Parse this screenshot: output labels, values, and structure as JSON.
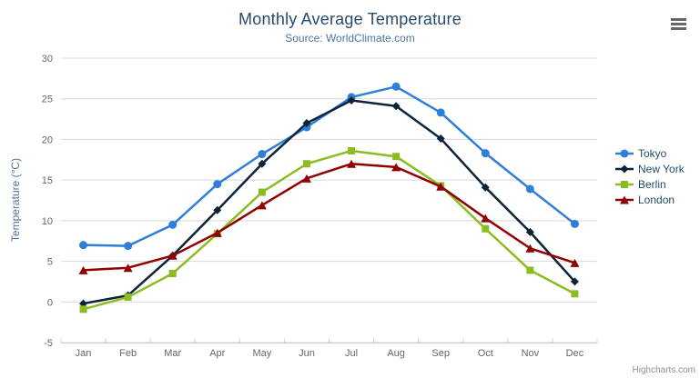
{
  "credits": "Highcharts.com",
  "context_menu": {
    "icon": "hamburger-menu"
  },
  "palette": {
    "title_color": "#274b6d",
    "subtitle_color": "#4d759e",
    "axis_title_color": "#4d759e",
    "tick_label_color": "#666666",
    "grid_color": "#d8d8d8",
    "axis_line_color": "#c0d0e0",
    "legend_text_color": "#274b6d",
    "credits_color": "#909090",
    "menu_icon_color": "#666666"
  },
  "chart_data": {
    "type": "line",
    "title": "Monthly Average Temperature",
    "subtitle": "Source: WorldClimate.com",
    "xlabel": "",
    "ylabel": "Temperature (°C)",
    "categories": [
      "Jan",
      "Feb",
      "Mar",
      "Apr",
      "May",
      "Jun",
      "Jul",
      "Aug",
      "Sep",
      "Oct",
      "Nov",
      "Dec"
    ],
    "ylim": [
      -5,
      30
    ],
    "y_ticks": [
      -5,
      0,
      5,
      10,
      15,
      20,
      25,
      30
    ],
    "grid": "horizontal",
    "legend_position": "right",
    "series": [
      {
        "name": "Tokyo",
        "color": "#2f7ed8",
        "marker": "circle",
        "values": [
          7.0,
          6.9,
          9.5,
          14.5,
          18.2,
          21.5,
          25.2,
          26.5,
          23.3,
          18.3,
          13.9,
          9.6
        ]
      },
      {
        "name": "New York",
        "color": "#0d233a",
        "marker": "diamond",
        "values": [
          -0.2,
          0.8,
          5.7,
          11.3,
          17.0,
          22.0,
          24.8,
          24.1,
          20.1,
          14.1,
          8.6,
          2.5
        ]
      },
      {
        "name": "Berlin",
        "color": "#8bbc21",
        "marker": "square",
        "values": [
          -0.9,
          0.6,
          3.5,
          8.4,
          13.5,
          17.0,
          18.6,
          17.9,
          14.3,
          9.0,
          3.9,
          1.0
        ]
      },
      {
        "name": "London",
        "color": "#910000",
        "marker": "triangle",
        "values": [
          3.9,
          4.2,
          5.7,
          8.5,
          11.9,
          15.2,
          17.0,
          16.6,
          14.2,
          10.3,
          6.6,
          4.8
        ]
      }
    ]
  }
}
